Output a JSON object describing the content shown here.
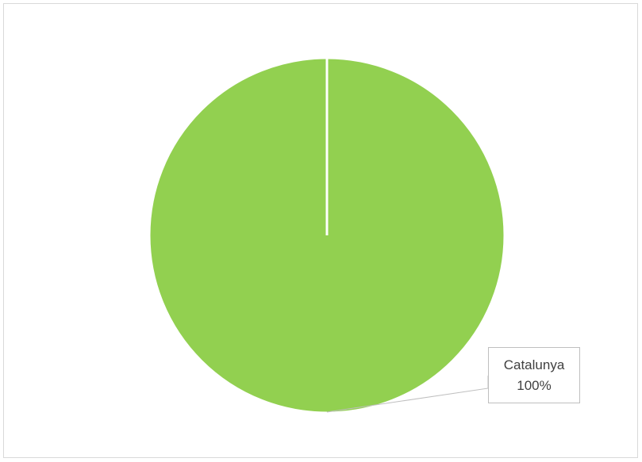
{
  "chart_data": {
    "type": "pie",
    "title": "",
    "slices": [
      {
        "label": "Catalunya",
        "value": 100,
        "percent_label": "100%",
        "color": "#92d050"
      }
    ],
    "legend": "none",
    "data_labels": "callout"
  },
  "colors": {
    "slice": "#92d050",
    "slice_border": "#ffffff",
    "leader_line": "#bfbfbf",
    "frame_border": "#d9d9d9",
    "label_text": "#404040"
  }
}
